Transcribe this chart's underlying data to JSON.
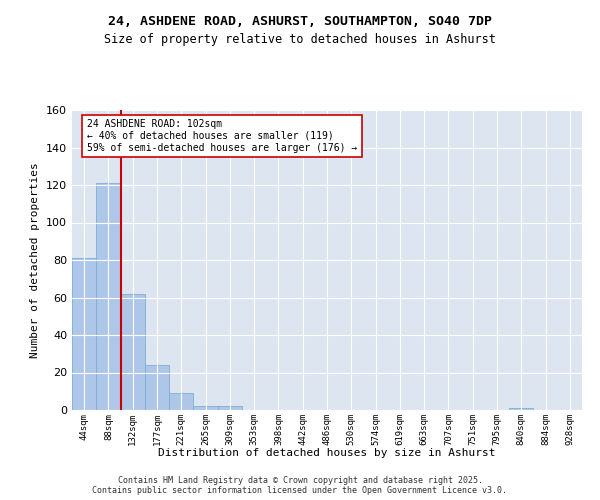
{
  "title1": "24, ASHDENE ROAD, ASHURST, SOUTHAMPTON, SO40 7DP",
  "title2": "Size of property relative to detached houses in Ashurst",
  "xlabel": "Distribution of detached houses by size in Ashurst",
  "ylabel": "Number of detached properties",
  "bar_labels": [
    "44sqm",
    "88sqm",
    "132sqm",
    "177sqm",
    "221sqm",
    "265sqm",
    "309sqm",
    "353sqm",
    "398sqm",
    "442sqm",
    "486sqm",
    "530sqm",
    "574sqm",
    "619sqm",
    "663sqm",
    "707sqm",
    "751sqm",
    "795sqm",
    "840sqm",
    "884sqm",
    "928sqm"
  ],
  "bar_values": [
    81,
    121,
    62,
    24,
    9,
    2,
    2,
    0,
    0,
    0,
    0,
    0,
    0,
    0,
    0,
    0,
    0,
    0,
    1,
    0,
    0
  ],
  "bar_color": "#aec6e8",
  "bar_edge_color": "#7aafd4",
  "vline_x": 1.5,
  "vline_color": "#cc0000",
  "annotation_text": "24 ASHDENE ROAD: 102sqm\n← 40% of detached houses are smaller (119)\n59% of semi-detached houses are larger (176) →",
  "annotation_box_color": "#ffffff",
  "annotation_box_edge": "#cc0000",
  "ylim": [
    0,
    160
  ],
  "yticks": [
    0,
    20,
    40,
    60,
    80,
    100,
    120,
    140,
    160
  ],
  "bg_color": "#dde5f0",
  "grid_color": "#ffffff",
  "fig_bg_color": "#ffffff",
  "footnote": "Contains HM Land Registry data © Crown copyright and database right 2025.\nContains public sector information licensed under the Open Government Licence v3.0."
}
